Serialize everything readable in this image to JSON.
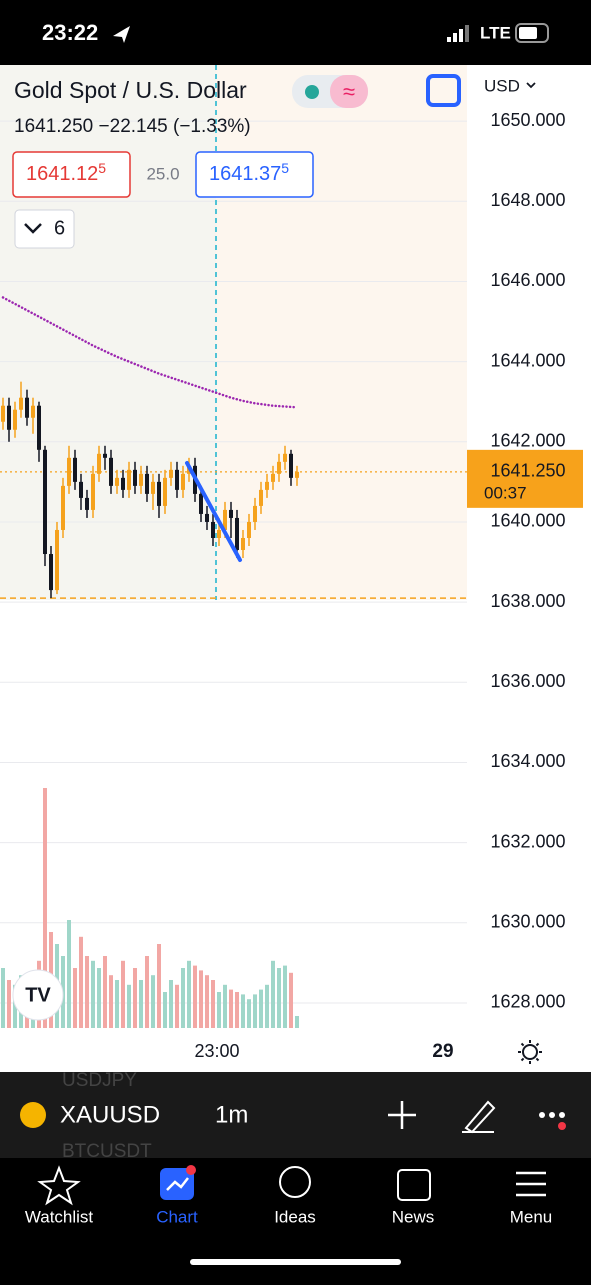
{
  "status": {
    "time": "23:22",
    "network": "LTE"
  },
  "header": {
    "title": "Gold Spot / U.S. Dollar",
    "quote": "1641.250  −22.145 (−1.33%)",
    "bid": "1641.12",
    "bid_sup": "5",
    "spread": "25.0",
    "ask": "1641.37",
    "ask_sup": "5",
    "indicators": "6",
    "currency": "USD"
  },
  "chart_data": {
    "type": "candlestick",
    "ylim": [
      1627.5,
      1651.4
    ],
    "yticks": [
      {
        "value": 1650,
        "label": "1650.000"
      },
      {
        "value": 1648,
        "label": "1648.000"
      },
      {
        "value": 1646,
        "label": "1646.000"
      },
      {
        "value": 1644,
        "label": "1644.000"
      },
      {
        "value": 1642,
        "label": "1642.000"
      },
      {
        "value": 1640,
        "label": "1640.000"
      },
      {
        "value": 1638,
        "label": "1638.000"
      },
      {
        "value": 1636,
        "label": "1636.000"
      },
      {
        "value": 1634,
        "label": "1634.000"
      },
      {
        "value": 1632,
        "label": "1632.000"
      },
      {
        "value": 1630,
        "label": "1630.000"
      },
      {
        "value": 1628,
        "label": "1628.000"
      }
    ],
    "grid": true,
    "up_color": "#f5a21d",
    "down_color": "#131722",
    "candles": {
      "open": [
        1642.5,
        1642.9,
        1642.3,
        1642.8,
        1643.1,
        1642.6,
        1642.9,
        1641.8,
        1639.2,
        1638.3,
        1639.8,
        1640.9,
        1641.6,
        1641.0,
        1640.6,
        1640.3,
        1641.2,
        1641.7,
        1641.6,
        1640.9,
        1641.1,
        1640.8,
        1641.3,
        1640.9,
        1641.2,
        1640.7,
        1641.0,
        1640.4,
        1641.1,
        1641.3,
        1640.8,
        1641.2,
        1641.4,
        1640.7,
        1640.2,
        1640.0,
        1639.6,
        1639.8,
        1640.3,
        1640.1,
        1639.3,
        1639.6,
        1640.0,
        1640.4,
        1640.8,
        1641.0,
        1641.2,
        1641.5,
        1641.7,
        1641.1
      ],
      "high": [
        1643.1,
        1643.1,
        1643.0,
        1643.5,
        1643.3,
        1643.1,
        1643.0,
        1641.9,
        1639.4,
        1640.0,
        1641.1,
        1641.9,
        1641.8,
        1641.2,
        1640.8,
        1641.4,
        1641.9,
        1641.9,
        1641.8,
        1641.3,
        1641.3,
        1641.5,
        1641.5,
        1641.4,
        1641.4,
        1641.2,
        1641.2,
        1641.3,
        1641.5,
        1641.5,
        1641.4,
        1641.6,
        1641.6,
        1640.9,
        1640.4,
        1640.2,
        1640.1,
        1640.5,
        1640.5,
        1640.3,
        1639.8,
        1640.2,
        1640.6,
        1641.0,
        1641.2,
        1641.4,
        1641.7,
        1641.9,
        1641.8,
        1641.4
      ],
      "low": [
        1642.3,
        1642.0,
        1642.1,
        1642.6,
        1642.4,
        1642.2,
        1641.5,
        1638.9,
        1638.1,
        1638.2,
        1639.6,
        1640.7,
        1640.8,
        1640.3,
        1640.1,
        1640.1,
        1641.0,
        1641.3,
        1640.7,
        1640.7,
        1640.6,
        1640.6,
        1640.7,
        1640.7,
        1640.5,
        1640.3,
        1640.1,
        1640.2,
        1640.9,
        1640.6,
        1640.6,
        1641.0,
        1640.5,
        1640.0,
        1639.8,
        1639.4,
        1639.4,
        1639.6,
        1639.6,
        1639.1,
        1639.1,
        1639.4,
        1639.8,
        1640.2,
        1640.6,
        1640.8,
        1641.0,
        1641.3,
        1640.9,
        1640.9
      ],
      "close": [
        1642.9,
        1642.3,
        1642.8,
        1643.1,
        1642.6,
        1642.9,
        1641.8,
        1639.2,
        1638.3,
        1639.8,
        1640.9,
        1641.6,
        1641.0,
        1640.6,
        1640.3,
        1641.2,
        1641.7,
        1641.6,
        1640.9,
        1641.1,
        1640.8,
        1641.3,
        1640.9,
        1641.2,
        1640.7,
        1641.0,
        1640.4,
        1641.1,
        1641.3,
        1640.8,
        1641.2,
        1641.4,
        1640.7,
        1640.2,
        1640.0,
        1639.6,
        1639.8,
        1640.3,
        1640.1,
        1639.3,
        1639.6,
        1640.0,
        1640.4,
        1640.8,
        1641.0,
        1641.2,
        1641.5,
        1641.7,
        1641.1,
        1641.25
      ]
    },
    "ma": {
      "color": "#9c27b0",
      "values": [
        1645.6,
        1645.52,
        1645.44,
        1645.36,
        1645.28,
        1645.2,
        1645.12,
        1645.04,
        1644.96,
        1644.88,
        1644.8,
        1644.72,
        1644.64,
        1644.56,
        1644.48,
        1644.4,
        1644.33,
        1644.26,
        1644.19,
        1644.12,
        1644.06,
        1644.0,
        1643.94,
        1643.88,
        1643.82,
        1643.76,
        1643.7,
        1643.65,
        1643.6,
        1643.55,
        1643.5,
        1643.45,
        1643.4,
        1643.35,
        1643.3,
        1643.25,
        1643.2,
        1643.15,
        1643.1,
        1643.06,
        1643.02,
        1642.99,
        1642.96,
        1642.94,
        1642.92,
        1642.9,
        1642.89,
        1642.88,
        1642.87,
        1642.86
      ]
    },
    "volume": {
      "ylim": [
        0,
        100
      ],
      "up_color": "#9fd6c9",
      "down_color": "#f2a7a4",
      "values": [
        25,
        20,
        18,
        22,
        15,
        20,
        28,
        100,
        40,
        35,
        30,
        45,
        25,
        38,
        30,
        28,
        25,
        30,
        22,
        20,
        28,
        18,
        25,
        20,
        30,
        22,
        35,
        15,
        20,
        18,
        25,
        28,
        26,
        24,
        22,
        20,
        15,
        18,
        16,
        15,
        14,
        12,
        14,
        16,
        18,
        28,
        25,
        26,
        23,
        5
      ]
    },
    "low_level": 1638.1,
    "last_price": {
      "value": 1641.25,
      "label": "1641.250"
    },
    "countdown": "00:37",
    "x_labels": [
      "23:00",
      "29"
    ]
  },
  "toolbar": {
    "symbol": "XAUUSD",
    "interval": "1m",
    "behind": [
      "USDJPY",
      "BTCUSDT"
    ]
  },
  "tabs": [
    "Watchlist",
    "Chart",
    "Ideas",
    "News",
    "Menu"
  ]
}
